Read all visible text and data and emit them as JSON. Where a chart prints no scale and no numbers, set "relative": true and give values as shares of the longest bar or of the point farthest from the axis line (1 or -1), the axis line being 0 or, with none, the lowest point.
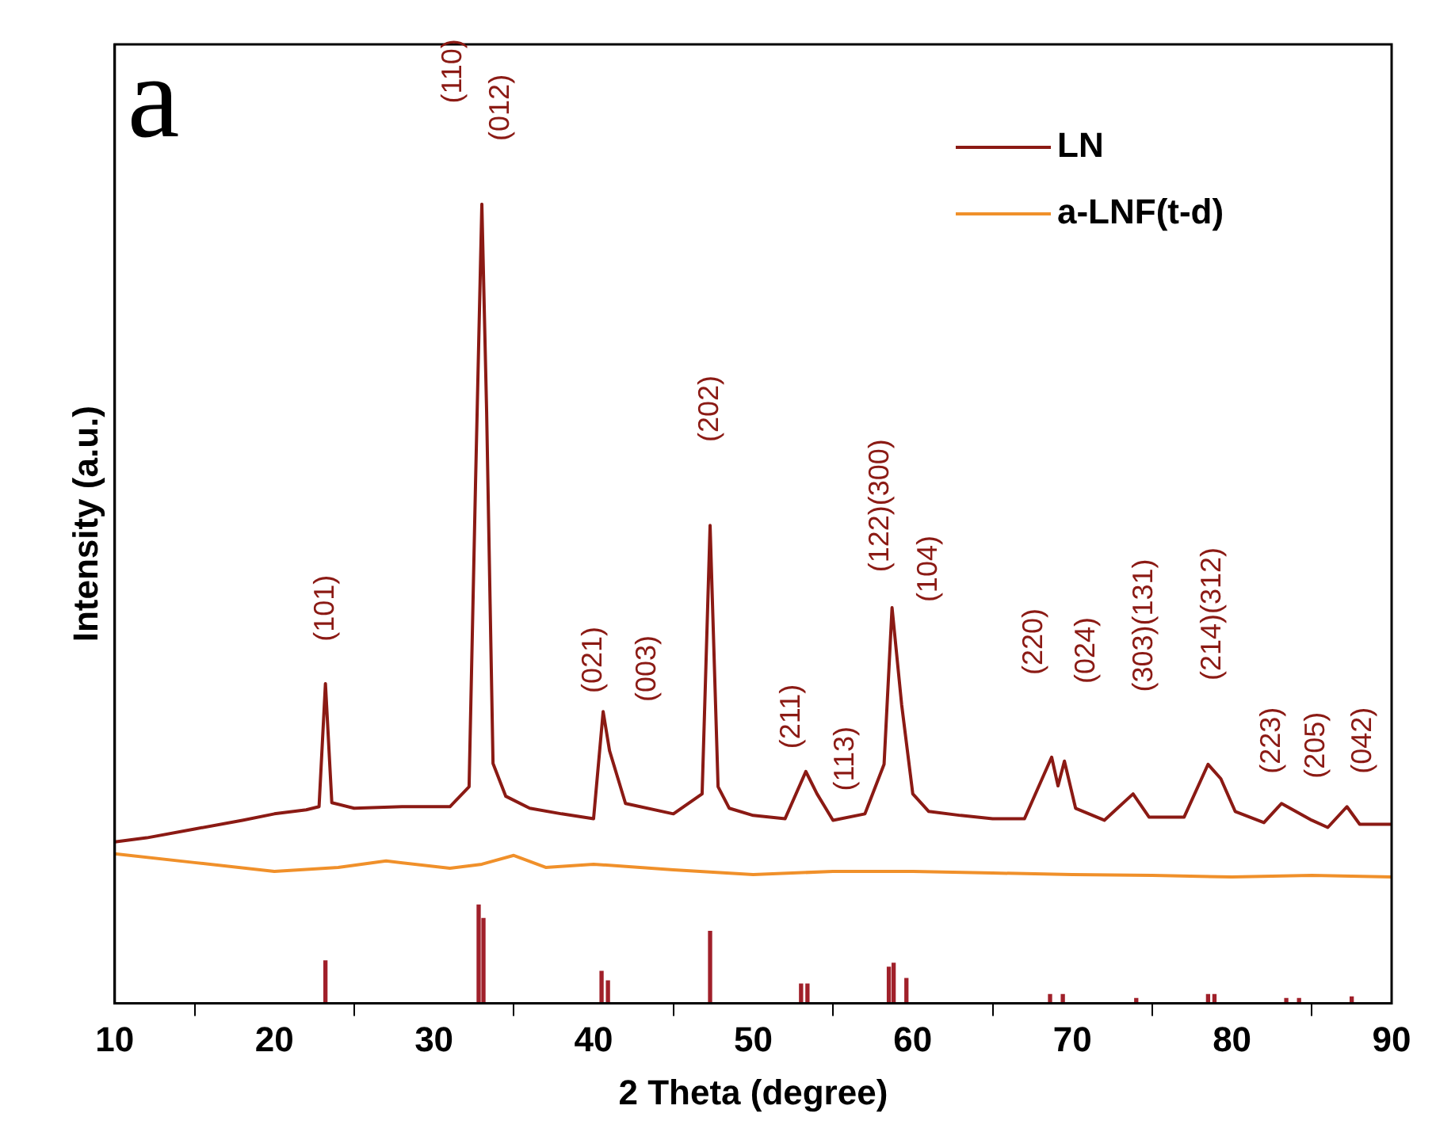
{
  "chart_data": {
    "type": "line",
    "relative": true,
    "xlabel": "2 Theta (degree)",
    "ylabel": "Intensity (a.u.)",
    "xlim": [
      10,
      90
    ],
    "xticks": [
      10,
      20,
      30,
      40,
      50,
      60,
      70,
      80,
      90
    ],
    "tick_labels": "x",
    "grid": false,
    "legend": "top right",
    "marker": "none",
    "line_style": "solid",
    "series": [
      {
        "name": "LN",
        "color": "#8b1a14",
        "x": [
          10,
          12,
          15,
          18,
          20,
          22,
          22.8,
          23.2,
          23.6,
          25,
          28,
          31,
          32.2,
          32.6,
          33.0,
          33.3,
          33.7,
          34.5,
          36,
          38,
          40,
          40.6,
          41,
          42,
          45,
          46.8,
          47.3,
          47.8,
          48.5,
          50,
          52,
          53.3,
          54,
          55,
          57,
          58.2,
          58.7,
          59.3,
          60,
          61,
          63,
          65,
          67,
          68.7,
          69.1,
          69.5,
          70.2,
          72,
          73.8,
          74.8,
          77,
          78.5,
          79.3,
          80.2,
          82,
          83.1,
          85,
          86,
          87.2,
          88,
          90
        ],
        "values": [
          0.202,
          0.207,
          0.218,
          0.229,
          0.237,
          0.242,
          0.246,
          0.4,
          0.251,
          0.244,
          0.246,
          0.246,
          0.271,
          0.647,
          1.0,
          0.74,
          0.3,
          0.259,
          0.244,
          0.237,
          0.231,
          0.365,
          0.316,
          0.25,
          0.237,
          0.262,
          0.598,
          0.271,
          0.244,
          0.235,
          0.231,
          0.29,
          0.262,
          0.229,
          0.237,
          0.299,
          0.495,
          0.374,
          0.262,
          0.24,
          0.235,
          0.231,
          0.231,
          0.308,
          0.272,
          0.303,
          0.244,
          0.229,
          0.262,
          0.233,
          0.233,
          0.299,
          0.281,
          0.24,
          0.226,
          0.25,
          0.229,
          0.22,
          0.246,
          0.224,
          0.224
        ]
      },
      {
        "name": "a-LNF(t-d)",
        "color": "#f0902a",
        "x": [
          10,
          15,
          20,
          24,
          27,
          31,
          33,
          35,
          37,
          40,
          45,
          50,
          55,
          60,
          65,
          70,
          75,
          80,
          85,
          90
        ],
        "values": [
          0.187,
          0.176,
          0.165,
          0.17,
          0.178,
          0.169,
          0.174,
          0.185,
          0.17,
          0.174,
          0.167,
          0.161,
          0.165,
          0.165,
          0.163,
          0.161,
          0.16,
          0.158,
          0.16,
          0.158
        ]
      },
      {
        "type": "bar",
        "color": "#a0202a",
        "x": [
          23.2,
          32.8,
          33.1,
          40.5,
          40.9,
          47.3,
          53.0,
          53.4,
          58.5,
          58.8,
          59.6,
          68.6,
          69.4,
          74.0,
          78.5,
          78.9,
          83.4,
          84.2,
          87.5
        ],
        "values": [
          0.053,
          0.123,
          0.106,
          0.04,
          0.028,
          0.09,
          0.024,
          0.024,
          0.045,
          0.05,
          0.031,
          0.011,
          0.011,
          0.006,
          0.011,
          0.011,
          0.006,
          0.006,
          0.008
        ]
      }
    ],
    "annotations": [
      "a",
      "(110)",
      "(012)",
      "(101)",
      "(021)",
      "(003)",
      "(202)",
      "(211)",
      "(113)",
      "(122)(300)",
      "(104)",
      "(220)",
      "(024)",
      "(303)(131)",
      "(214)(312)",
      "(223)",
      "(205)",
      "(042)"
    ]
  }
}
